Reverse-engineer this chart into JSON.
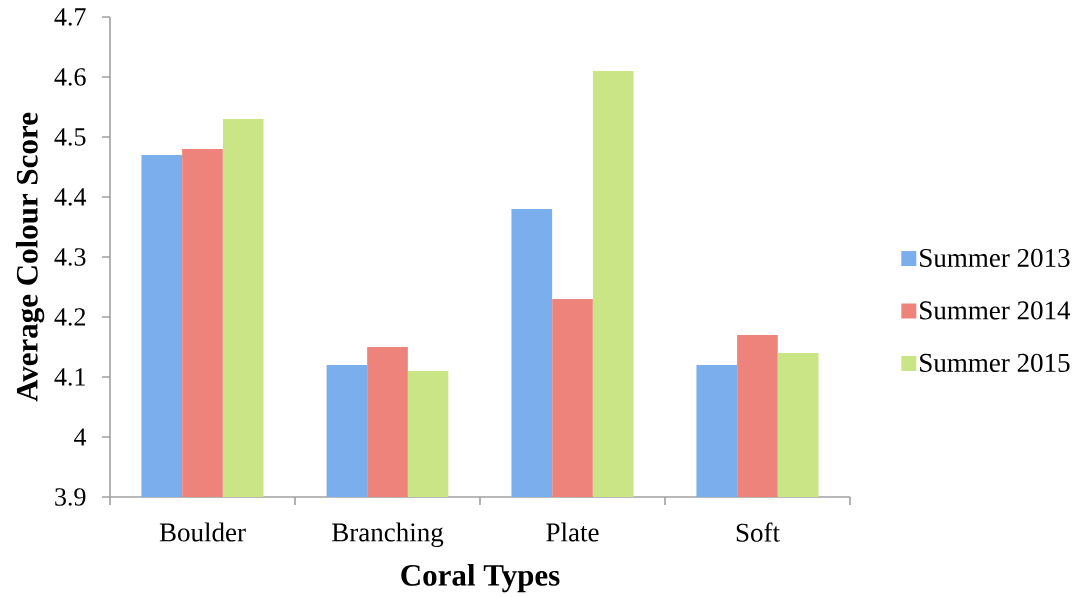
{
  "chart_data": {
    "type": "bar",
    "xlabel": "Coral Types",
    "ylabel": "Average Colour Score",
    "categories": [
      "Boulder",
      "Branching",
      "Plate",
      "Soft"
    ],
    "series": [
      {
        "name": "Summer 2013",
        "color": "#7aaeec",
        "values": [
          4.47,
          4.12,
          4.38,
          4.12
        ]
      },
      {
        "name": "Summer 2014",
        "color": "#ee837c",
        "values": [
          4.48,
          4.15,
          4.23,
          4.17
        ]
      },
      {
        "name": "Summer 2015",
        "color": "#c9e585",
        "values": [
          4.53,
          4.11,
          4.61,
          4.14
        ]
      }
    ],
    "ylim": [
      3.9,
      4.7
    ],
    "yticks": [
      3.9,
      4,
      4.1,
      4.2,
      4.3,
      4.4,
      4.5,
      4.6,
      4.7
    ],
    "legend": "right"
  }
}
